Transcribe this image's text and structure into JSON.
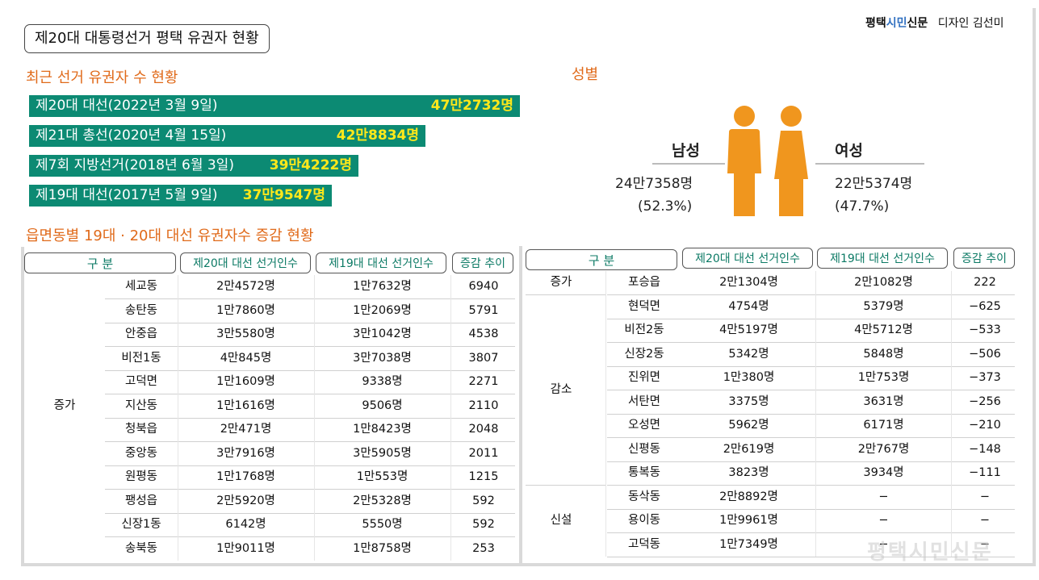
{
  "title": "제20대 대통령선거 평택 유권자 현황",
  "brand": {
    "name_a": "평택",
    "name_b": "시민",
    "name_c": "신문",
    "designer": "디자인 김선미"
  },
  "watermark": "평택시민신문",
  "recent_title": "최근 선거 유권자 수 현황",
  "recent": [
    {
      "label": "제20대 대선(2022년 3월 9일)",
      "value_text": "47만2732명",
      "value": 472732
    },
    {
      "label": "제21대 총선(2020년 4월 15일)",
      "value_text": "42만8834명",
      "value": 428834
    },
    {
      "label": "제7회 지방선거(2018년 6월 3일)",
      "value_text": "39만4222명",
      "value": 394222
    },
    {
      "label": "제19대 대선(2017년 5월 9일)",
      "value_text": "37만9547명",
      "value": 379547
    }
  ],
  "gender_title": "성별",
  "gender": {
    "male": {
      "label": "남성",
      "count": "24만7358명",
      "pct": "(52.3%)"
    },
    "female": {
      "label": "여성",
      "count": "22만5374명",
      "pct": "(47.7%)"
    },
    "male_color": "#f0961e",
    "female_color": "#f0961e"
  },
  "table_title": "읍면동별 19대 · 20대 대선 유권자수 증감 현황",
  "headers": {
    "gu": "구 분",
    "c20": "제20대 대선 선거인수",
    "c19": "제19대 대선 선거인수",
    "diff": "증감 추이"
  },
  "left_group": "증가",
  "left_rows": [
    {
      "name": "세교동",
      "c20": "2만4572명",
      "c19": "1만7632명",
      "diff": "6940"
    },
    {
      "name": "송탄동",
      "c20": "1만7860명",
      "c19": "1만2069명",
      "diff": "5791"
    },
    {
      "name": "안중읍",
      "c20": "3만5580명",
      "c19": "3만1042명",
      "diff": "4538"
    },
    {
      "name": "비전1동",
      "c20": "4만845명",
      "c19": "3만7038명",
      "diff": "3807"
    },
    {
      "name": "고덕면",
      "c20": "1만1609명",
      "c19": "9338명",
      "diff": "2271"
    },
    {
      "name": "지산동",
      "c20": "1만1616명",
      "c19": "9506명",
      "diff": "2110"
    },
    {
      "name": "청북읍",
      "c20": "2만471명",
      "c19": "1만8423명",
      "diff": "2048"
    },
    {
      "name": "중앙동",
      "c20": "3만7916명",
      "c19": "3만5905명",
      "diff": "2011"
    },
    {
      "name": "원평동",
      "c20": "1만1768명",
      "c19": "1만553명",
      "diff": "1215"
    },
    {
      "name": "팽성읍",
      "c20": "2만5920명",
      "c19": "2만5328명",
      "diff": "592"
    },
    {
      "name": "신장1동",
      "c20": "6142명",
      "c19": "5550명",
      "diff": "592"
    },
    {
      "name": "송북동",
      "c20": "1만9011명",
      "c19": "1만8758명",
      "diff": "253"
    }
  ],
  "right_groups": [
    {
      "group": "증가",
      "rows": [
        {
          "name": "포승읍",
          "c20": "2만1304명",
          "c19": "2만1082명",
          "diff": "222"
        }
      ]
    },
    {
      "group": "감소",
      "rows": [
        {
          "name": "현덕면",
          "c20": "4754명",
          "c19": "5379명",
          "diff": "−625"
        },
        {
          "name": "비전2동",
          "c20": "4만5197명",
          "c19": "4만5712명",
          "diff": "−533"
        },
        {
          "name": "신장2동",
          "c20": "5342명",
          "c19": "5848명",
          "diff": "−506"
        },
        {
          "name": "진위면",
          "c20": "1만380명",
          "c19": "1만753명",
          "diff": "−373"
        },
        {
          "name": "서탄면",
          "c20": "3375명",
          "c19": "3631명",
          "diff": "−256"
        },
        {
          "name": "오성면",
          "c20": "5962명",
          "c19": "6171명",
          "diff": "−210"
        },
        {
          "name": "신평동",
          "c20": "2만619명",
          "c19": "2만767명",
          "diff": "−148"
        },
        {
          "name": "통복동",
          "c20": "3823명",
          "c19": "3934명",
          "diff": "−111"
        }
      ]
    },
    {
      "group": "신설",
      "rows": [
        {
          "name": "동삭동",
          "c20": "2만8892명",
          "c19": "−",
          "diff": "−"
        },
        {
          "name": "용이동",
          "c20": "1만9961명",
          "c19": "−",
          "diff": "−"
        },
        {
          "name": "고덕동",
          "c20": "1만7349명",
          "c19": "−",
          "diff": "−"
        }
      ]
    }
  ],
  "colors": {
    "bar": "#0c8a73",
    "bar_value": "#ffe81a",
    "section_title": "#e06a1a",
    "header_text": "#0c7a65"
  },
  "chart_data": {
    "type": "bar",
    "title": "최근 선거 유권자 수 현황",
    "categories": [
      "제20대 대선(2022년 3월 9일)",
      "제21대 총선(2020년 4월 15일)",
      "제7회 지방선거(2018년 6월 3일)",
      "제19대 대선(2017년 5월 9일)"
    ],
    "values": [
      472732,
      428834,
      394222,
      379547
    ],
    "orientation": "horizontal"
  }
}
